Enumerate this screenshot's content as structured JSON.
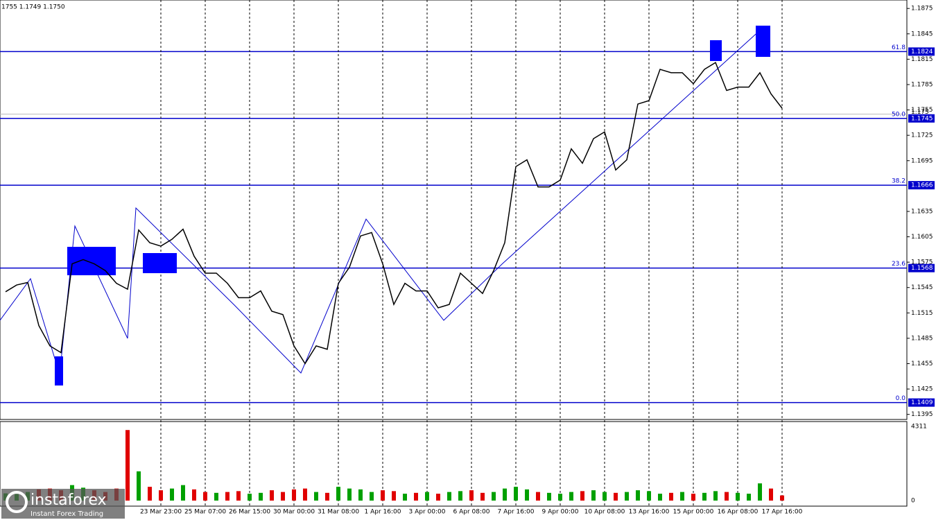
{
  "chart_data": {
    "type": "line",
    "header": "1755 1.1749 1.1750",
    "color": "#000000",
    "categories": [
      null,
      null,
      null,
      null,
      null,
      null,
      null,
      null,
      null,
      null,
      null,
      null,
      null,
      null,
      "23 Mar 23:00",
      null,
      null,
      null,
      "25 Mar 07:00",
      null,
      null,
      null,
      "26 Mar 15:00",
      null,
      null,
      null,
      "30 Mar 00:00",
      null,
      null,
      null,
      "31 Mar 08:00",
      null,
      null,
      null,
      "1 Apr 16:00",
      null,
      null,
      null,
      "3 Apr 00:00",
      null,
      null,
      null,
      "6 Apr 08:00",
      null,
      null,
      null,
      "7 Apr 16:00",
      null,
      null,
      null,
      "9 Apr 00:00",
      null,
      null,
      null,
      "10 Apr 08:00",
      null,
      null,
      null,
      "13 Apr 16:00",
      null,
      null,
      null,
      "15 Apr 00:00",
      null,
      null,
      null,
      "16 Apr 08:00",
      null,
      null,
      null,
      "17 Apr 16:00"
    ],
    "values": [
      1.154,
      1.1548,
      1.1551,
      1.15,
      1.1476,
      1.1468,
      1.1573,
      1.1578,
      1.1573,
      1.1565,
      1.155,
      1.1543,
      1.1613,
      1.1598,
      1.1594,
      1.1602,
      1.1614,
      1.1582,
      1.1562,
      1.1562,
      1.155,
      1.1533,
      1.1533,
      1.1541,
      1.1517,
      1.1513,
      1.1476,
      1.1455,
      1.1476,
      1.1472,
      1.155,
      1.1569,
      1.1606,
      1.161,
      1.1573,
      1.1525,
      1.155,
      1.1541,
      1.1541,
      1.1521,
      1.1525,
      1.1562,
      1.155,
      1.1538,
      1.1565,
      1.1598,
      1.1688,
      1.1696,
      1.1664,
      1.1664,
      1.1672,
      1.1709,
      1.1692,
      1.1721,
      1.1729,
      1.1684,
      1.1696,
      1.1762,
      1.1766,
      1.1803,
      1.1799,
      1.1799,
      1.1786,
      1.1803,
      1.1811,
      1.1778,
      1.1782,
      1.1782,
      1.1799,
      1.1774,
      1.1757
    ],
    "ylim": [
      1.1389,
      1.1885
    ],
    "yticks": [
      1.1875,
      1.1845,
      1.1815,
      1.1785,
      1.1755,
      1.1725,
      1.1695,
      1.1635,
      1.1605,
      1.1575,
      1.1545,
      1.1515,
      1.1485,
      1.1455,
      1.1425,
      1.1395
    ],
    "current_price": 1.175,
    "levels": [
      {
        "ratio": 61.8,
        "price": 1.1824
      },
      {
        "ratio": {
          "value": 50,
          "label": "50.0"
        },
        "price": 1.1745
      },
      {
        "ratio": 38.2,
        "price": 1.1666
      },
      {
        "ratio": 23.6,
        "price": 1.1568
      },
      {
        "ratio": {
          "value": 0,
          "label": "0.0"
        },
        "price": 1.1409
      }
    ],
    "volume": [
      420,
      380,
      500,
      650,
      700,
      600,
      900,
      750,
      600,
      500,
      700,
      4100,
      1700,
      800,
      600,
      700,
      900,
      650,
      500,
      450,
      500,
      550,
      400,
      450,
      600,
      500,
      650,
      700,
      500,
      450,
      800,
      700,
      650,
      500,
      600,
      550,
      400,
      450,
      500,
      400,
      500,
      550,
      600,
      450,
      500,
      700,
      800,
      650,
      500,
      450,
      400,
      500,
      550,
      600,
      500,
      450,
      500,
      600,
      550,
      400,
      450,
      500,
      400,
      450,
      550,
      500,
      450,
      400,
      1000,
      700,
      300
    ],
    "volume_ylim": [
      0,
      4311
    ],
    "volume_ticks": [
      4311,
      0
    ],
    "logo": {
      "name": "instaforex",
      "tagline": "Instant Forex Trading"
    }
  }
}
